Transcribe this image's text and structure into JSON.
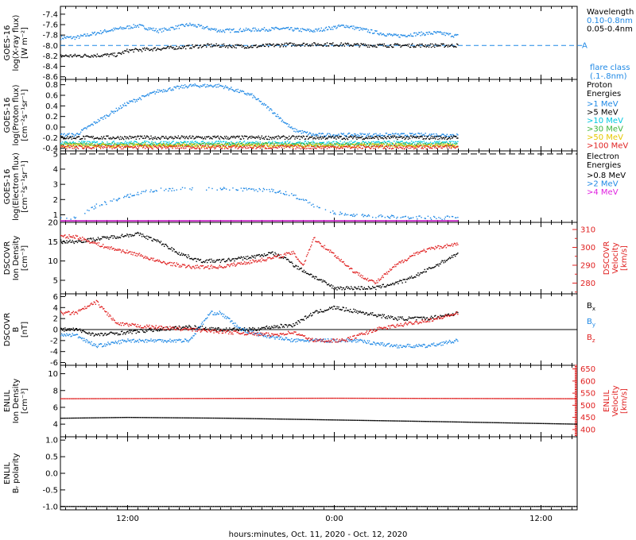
{
  "figure": {
    "xlabel": "hours:minutes, Oct. 11, 2020 - Oct. 12, 2020",
    "x_ticks": [
      "12:00",
      "0:00",
      "12:00"
    ]
  },
  "colors": {
    "black": "#000000",
    "blue": "#1e88e5",
    "cyan": "#00c8e0",
    "green": "#3cb43c",
    "yellow": "#e6c800",
    "orange": "#ff8c00",
    "red": "#e02020",
    "magenta": "#e020e0",
    "dashed_blue": "#1e88e5"
  },
  "chart_data": [
    {
      "type": "scatter",
      "id": "xray",
      "ylabel": "GOES-16 log(X-ray flux) [W m-2]",
      "ylabel_lines": [
        "GOES-16",
        "log(X-ray flux)",
        "[W m⁻²]"
      ],
      "ylim": [
        -8.65,
        -7.25
      ],
      "yticks": [
        -7.4,
        -7.6,
        -7.8,
        -8.0,
        -8.2,
        -8.4,
        -8.6
      ],
      "legend_title": "Wavelength",
      "legend": [
        {
          "label": "0.10-0.8nm",
          "color": "#1e88e5"
        },
        {
          "label": "0.05-0.4nm",
          "color": "#000000"
        }
      ],
      "flare_label": [
        "flare class",
        "(.1-.8nm)"
      ],
      "reference_line": {
        "y": -8.0,
        "label": "A"
      },
      "series": [
        {
          "name": "0.10-0.8nm",
          "color": "#1e88e5",
          "anchors_x": [
            -5,
            -2,
            1,
            3,
            6,
            9,
            12,
            15,
            18,
            21,
            24,
            26,
            28,
            30,
            32
          ],
          "anchors_y": [
            -7.85,
            -7.72,
            -7.62,
            -7.72,
            -7.6,
            -7.72,
            -7.7,
            -7.68,
            -7.72,
            -7.62,
            -7.75,
            -7.82,
            -7.78,
            -7.76,
            -7.82
          ]
        },
        {
          "name": "0.05-0.4nm",
          "color": "#000000",
          "anchors_x": [
            -5,
            -1,
            0,
            4,
            8,
            12,
            16,
            20,
            24,
            28,
            32
          ],
          "anchors_y": [
            -8.2,
            -8.18,
            -8.1,
            -8.05,
            -8.0,
            -8.02,
            -7.98,
            -7.98,
            -8.0,
            -8.0,
            -8.0
          ]
        }
      ]
    },
    {
      "type": "scatter",
      "id": "proton",
      "ylabel": "GOES-16 log(Proton flux) [cm-2 s-1 sr-1]",
      "ylabel_lines": [
        "GOES-16",
        "log(Proton flux)",
        "[cm⁻²s⁻¹sr⁻¹]"
      ],
      "ylim": [
        -0.45,
        0.9
      ],
      "yticks": [
        0.8,
        0.6,
        0.4,
        0.2,
        0.0,
        -0.2,
        -0.4
      ],
      "legend_title": "Proton",
      "legend_title2": "Energies",
      "legend": [
        {
          "label": ">1 MeV",
          "color": "#1e88e5"
        },
        {
          "label": ">5 MeV",
          "color": "#000000"
        },
        {
          "label": ">10 MeV",
          "color": "#00c8e0"
        },
        {
          "label": ">30 MeV",
          "color": "#3cb43c"
        },
        {
          "label": ">50 MeV",
          "color": "#e6c800"
        },
        {
          "label": ">100 MeV",
          "color": "#e02020"
        }
      ],
      "series": [
        {
          "name": ">1 MeV",
          "color": "#1e88e5",
          "anchors_x": [
            -5,
            -3,
            0,
            3,
            6,
            9,
            12,
            14,
            16,
            18,
            32
          ],
          "anchors_y": [
            -0.15,
            0.1,
            0.45,
            0.68,
            0.78,
            0.78,
            0.6,
            0.3,
            -0.05,
            -0.15,
            -0.15
          ]
        },
        {
          "name": ">5 MeV",
          "color": "#000000",
          "anchors_x": [
            -5,
            32
          ],
          "anchors_y": [
            -0.2,
            -0.2
          ]
        },
        {
          "name": ">10 MeV",
          "color": "#00c8e0",
          "anchors_x": [
            -5,
            32
          ],
          "anchors_y": [
            -0.3,
            -0.3
          ]
        },
        {
          "name": ">30 MeV",
          "color": "#3cb43c",
          "anchors_x": [
            -5,
            32
          ],
          "anchors_y": [
            -0.33,
            -0.33
          ]
        },
        {
          "name": ">50 MeV",
          "color": "#e6c800",
          "anchors_x": [
            -5,
            32
          ],
          "anchors_y": [
            -0.35,
            -0.35
          ]
        },
        {
          "name": ">100 MeV",
          "color": "#e02020",
          "anchors_x": [
            -5,
            32
          ],
          "anchors_y": [
            -0.38,
            -0.38
          ]
        }
      ]
    },
    {
      "type": "scatter",
      "id": "electron",
      "ylabel": "GOES-16 log(Electron flux) [cm-2 s-1 sr-1]",
      "ylabel_lines": [
        "GOES-16",
        "log(Electron flux)",
        "[cm⁻²s⁻¹sr⁻¹]"
      ],
      "ylim": [
        0.5,
        5.2
      ],
      "yticks": [
        5,
        4,
        3,
        2,
        1
      ],
      "reference_line": {
        "y": 5.0
      },
      "legend_title": "Electron",
      "legend_title2": "Energies",
      "legend": [
        {
          "label": ">0.8 MeV",
          "color": "#000000"
        },
        {
          "label": ">2 MeV",
          "color": "#1e88e5"
        },
        {
          "label": ">4 MeV",
          "color": "#e020e0"
        }
      ],
      "series": [
        {
          "name": ">2 MeV",
          "color": "#1e88e5",
          "anchors_x": [
            -5,
            -3,
            -1,
            2,
            6,
            10,
            14,
            16,
            18,
            20,
            24,
            28,
            32
          ],
          "anchors_y": [
            0.8,
            1.6,
            2.0,
            2.6,
            2.75,
            2.7,
            2.6,
            2.3,
            1.6,
            1.1,
            0.9,
            0.8,
            0.8
          ]
        },
        {
          "name": ">0.8 MeV",
          "color": "#000000",
          "anchors_x": [
            -5,
            32
          ],
          "anchors_y": [
            0.6,
            0.6
          ]
        },
        {
          "name": ">4 MeV",
          "color": "#e020e0",
          "anchors_x": [
            -5,
            32
          ],
          "anchors_y": [
            0.6,
            0.6
          ]
        }
      ]
    },
    {
      "type": "scatter",
      "id": "dscovr_density",
      "ylabel": "DSCOVR Ion Density [cm-3]",
      "ylabel_lines": [
        "DSCOVR",
        "Ion Density",
        "[cm⁻³]"
      ],
      "ylim": [
        1.5,
        20
      ],
      "yticks": [
        20,
        15,
        10,
        5
      ],
      "y2label": "DSCOVR Velocity [km/s]",
      "y2label_lines": [
        "DSCOVR",
        "Velocity",
        "[km/s]"
      ],
      "y2lim": [
        274,
        314
      ],
      "y2ticks": [
        310,
        300,
        290,
        280
      ],
      "series": [
        {
          "name": "density",
          "color": "#000000",
          "axis": "left",
          "anchors_x": [
            -5,
            -2,
            1,
            3,
            5,
            7,
            9,
            12,
            14,
            15.8,
            16,
            18,
            20,
            22,
            24,
            27,
            30,
            32
          ],
          "anchors_y": [
            15,
            16,
            17,
            15,
            12,
            10,
            10,
            11,
            12,
            10,
            9,
            6,
            3,
            3,
            3,
            5,
            9,
            12
          ]
        },
        {
          "name": "velocity",
          "color": "#e02020",
          "axis": "right",
          "anchors_x": [
            -5,
            -2,
            1,
            3,
            6,
            9,
            12,
            14,
            16,
            17,
            18,
            20,
            22,
            24,
            26,
            28,
            30,
            32
          ],
          "anchors_y": [
            306,
            300,
            296,
            292,
            289,
            289,
            292,
            294,
            297,
            290,
            305,
            296,
            286,
            280,
            290,
            297,
            300,
            302
          ]
        }
      ]
    },
    {
      "type": "scatter",
      "id": "dscovr_b",
      "ylabel": "DSCOVR B [nT]",
      "ylabel_lines": [
        "DSCOVR",
        "B",
        "[nT]"
      ],
      "ylim": [
        -6.5,
        6.5
      ],
      "yticks": [
        6,
        4,
        2,
        0,
        -2,
        -4,
        -6
      ],
      "zero_line": true,
      "legend": [
        {
          "label": "Bx",
          "color": "#000000"
        },
        {
          "label": "By",
          "color": "#1e88e5"
        },
        {
          "label": "Bz",
          "color": "#e02020"
        }
      ],
      "series": [
        {
          "name": "Bx",
          "color": "#000000",
          "anchors_x": [
            -5,
            -3,
            0,
            3,
            6,
            9,
            12,
            14,
            16,
            18,
            20,
            23,
            26,
            29,
            32
          ],
          "anchors_y": [
            0,
            -1,
            -0.5,
            0,
            0.5,
            0,
            0,
            0.5,
            0.8,
            3,
            4,
            3,
            2,
            2,
            3
          ]
        },
        {
          "name": "By",
          "color": "#1e88e5",
          "anchors_x": [
            -5,
            -3,
            0,
            3,
            6,
            8,
            9,
            11,
            13,
            16,
            19,
            22,
            26,
            29,
            32
          ],
          "anchors_y": [
            -1,
            -3,
            -2,
            -2,
            -2,
            3,
            3,
            0,
            -1,
            -2,
            -2,
            -2,
            -3,
            -3,
            -2
          ]
        },
        {
          "name": "Bz",
          "color": "#e02020",
          "anchors_x": [
            -5,
            -3,
            -1,
            2,
            6,
            10,
            14,
            16,
            18,
            21,
            24,
            27,
            30,
            32
          ],
          "anchors_y": [
            3,
            5,
            1,
            0.5,
            0,
            -0.5,
            -1,
            -0.5,
            -2,
            -2,
            0,
            1,
            2,
            3
          ]
        }
      ]
    },
    {
      "type": "scatter",
      "id": "enlil_density",
      "ylabel": "ENLIL Ion Density [cm-3]",
      "ylabel_lines": [
        "ENLIL",
        "Ion Density",
        "[cm⁻³]"
      ],
      "ylim": [
        2.5,
        11
      ],
      "yticks": [
        10,
        8,
        6,
        4
      ],
      "y2label": "ENLIL Velocity [km/s]",
      "y2label_lines": [
        "ENLIL",
        "Velocity",
        "[km/s]"
      ],
      "y2lim": [
        370,
        665
      ],
      "y2ticks": [
        650,
        600,
        550,
        500,
        450,
        400
      ],
      "series": [
        {
          "name": "density",
          "color": "#000000",
          "axis": "left",
          "anchors_x": [
            -6.5,
            0,
            10,
            20,
            30,
            43.5
          ],
          "anchors_y": [
            4.7,
            4.8,
            4.7,
            4.5,
            4.3,
            4.0
          ]
        },
        {
          "name": "velocity",
          "color": "#e02020",
          "axis": "right",
          "anchors_x": [
            -6.5,
            20,
            43.5
          ],
          "anchors_y": [
            527,
            529,
            527
          ]
        }
      ]
    },
    {
      "type": "scatter",
      "id": "enlil_polarity",
      "ylabel": "ENLIL Br polarity",
      "ylabel_lines": [
        "ENLIL",
        "Bᵣ polarity"
      ],
      "ylim": [
        -1.1,
        1.1
      ],
      "yticks": [
        1.0,
        0.5,
        0.0,
        -0.5,
        -1.0
      ],
      "series": [
        {
          "name": "polarity",
          "color": "#000000",
          "anchors_x": [
            -6.5,
            43.5
          ],
          "anchors_y": [
            -1.0,
            -1.0
          ]
        }
      ]
    }
  ]
}
